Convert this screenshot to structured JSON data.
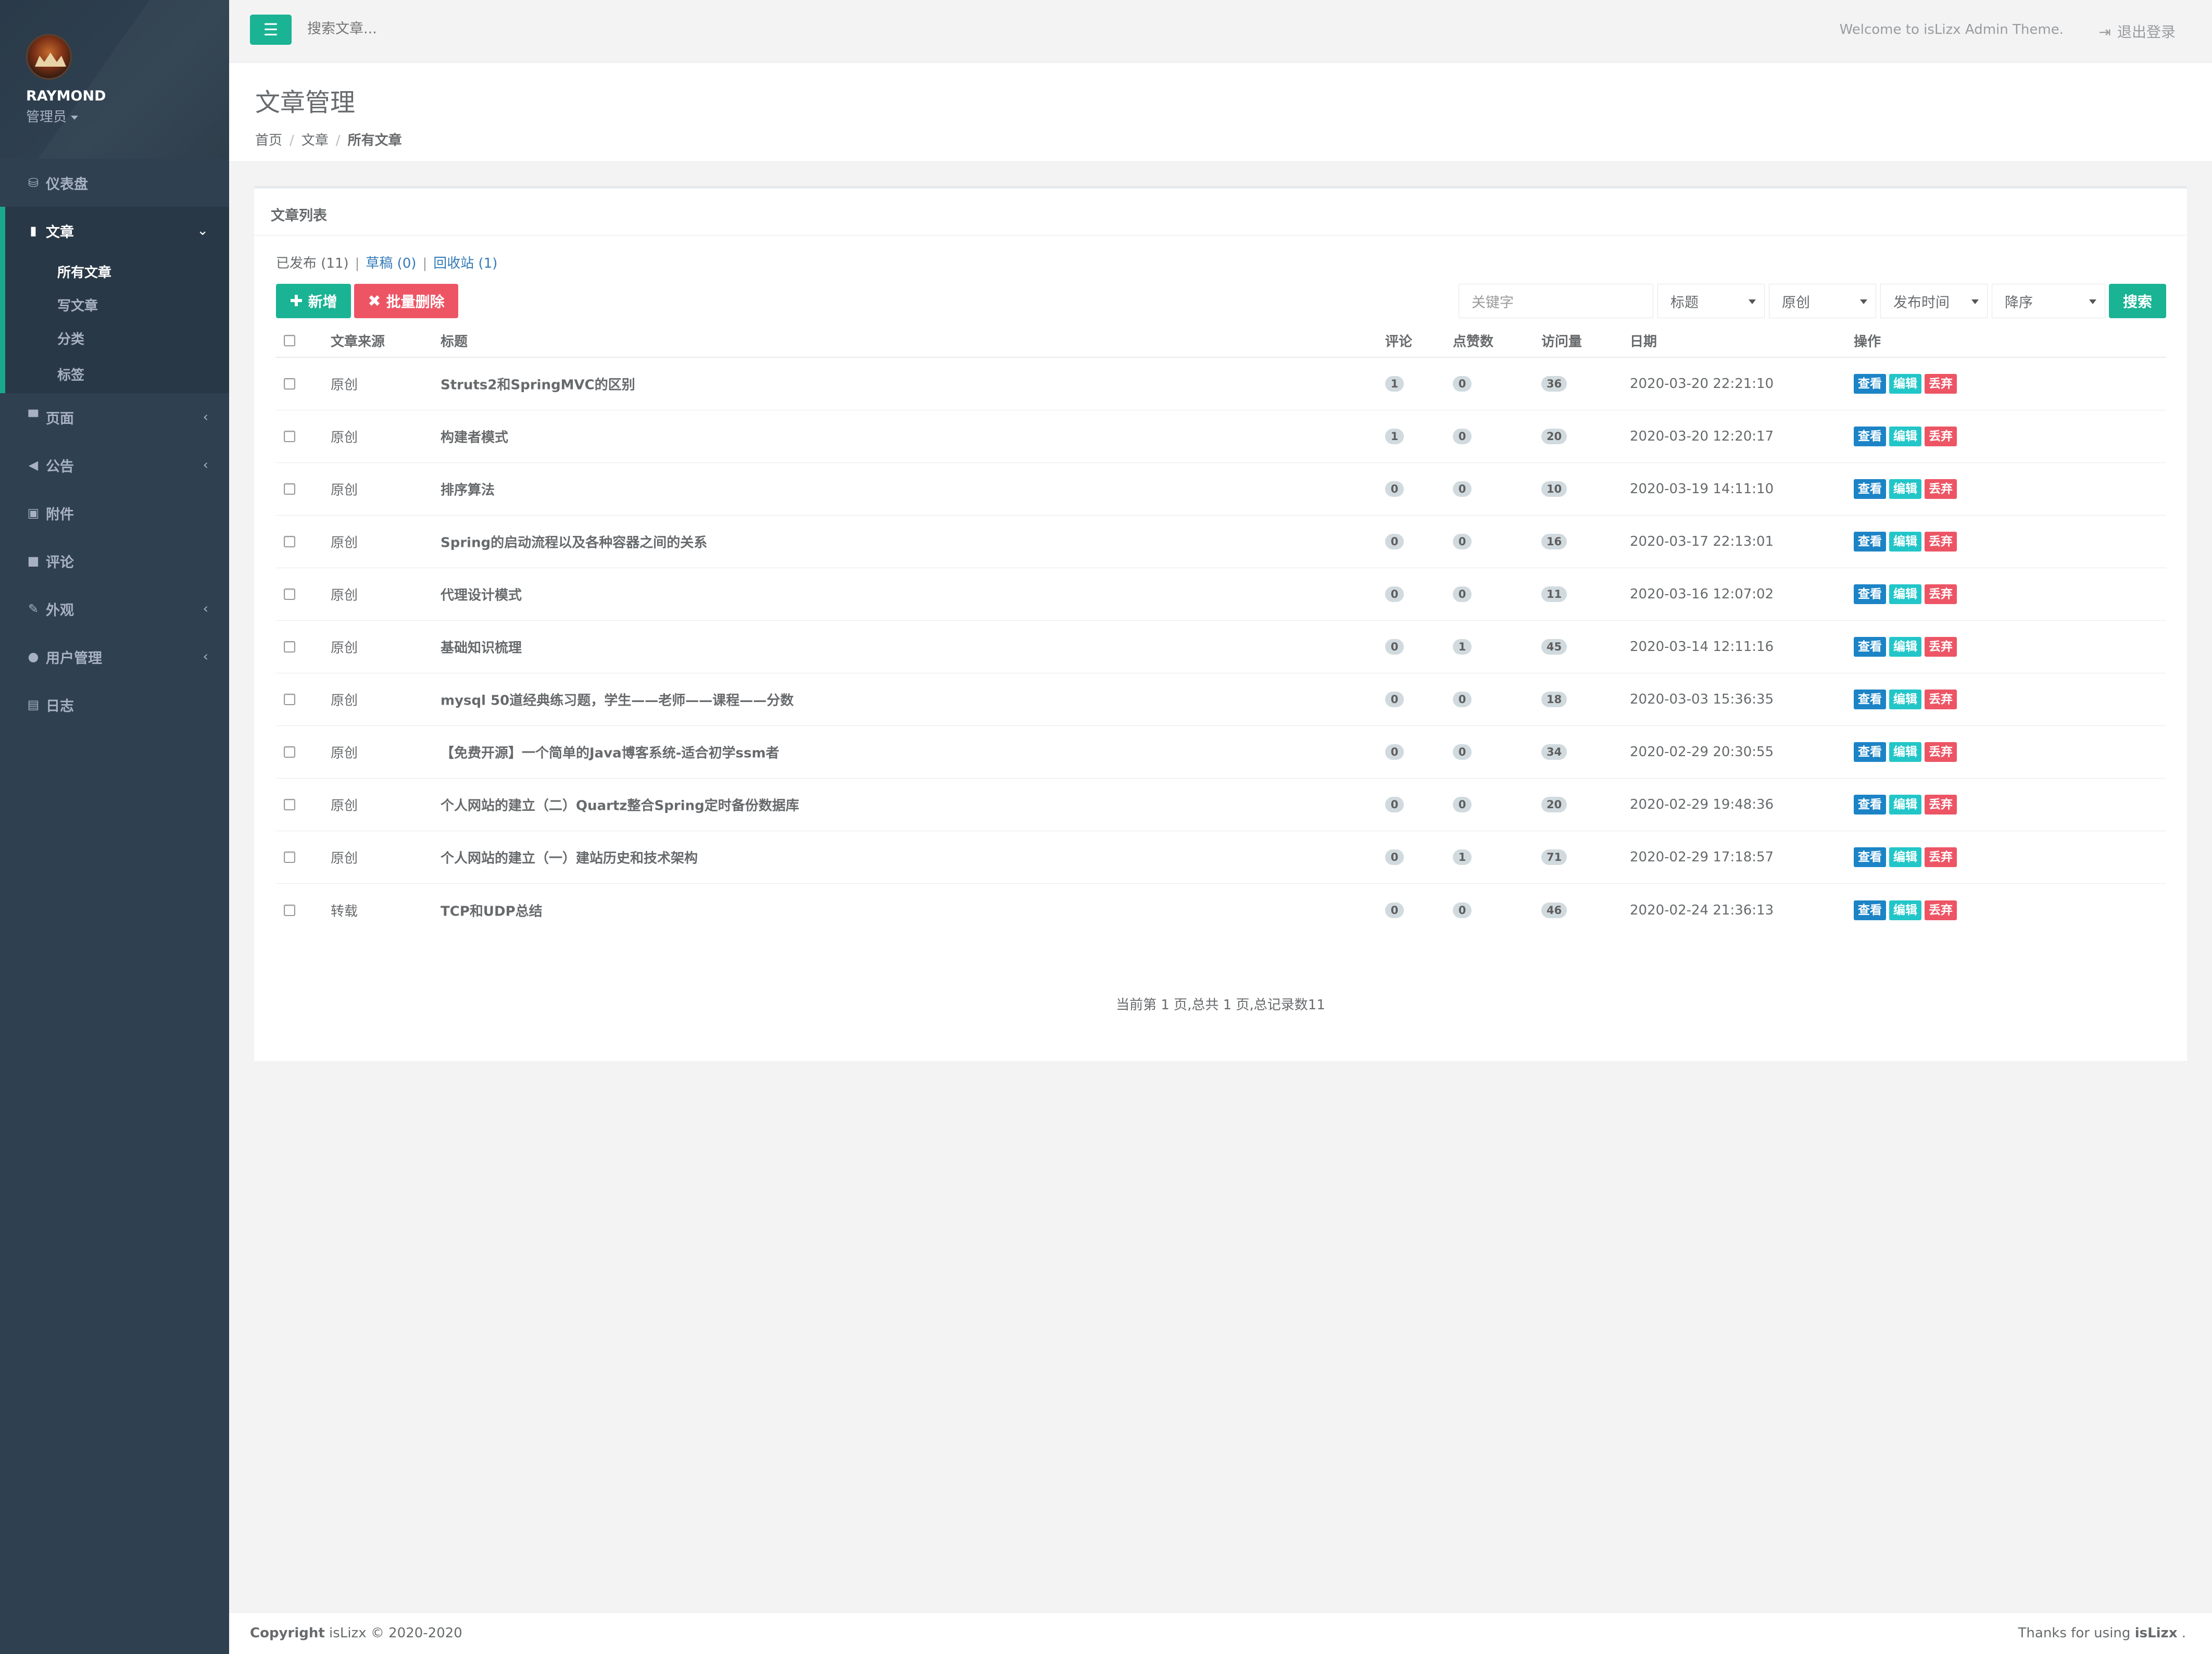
{
  "sidebar": {
    "profile": {
      "name": "RAYMOND",
      "role": "管理员"
    },
    "nav": [
      {
        "label": "仪表盘",
        "icon": "dashboard-icon",
        "glyph": "⛁"
      },
      {
        "label": "文章",
        "icon": "book-icon",
        "glyph": "▮",
        "chev": "⌄"
      },
      {
        "label": "页面",
        "icon": "desktop-icon",
        "glyph": "▀",
        "chev": "‹"
      },
      {
        "label": "公告",
        "icon": "bullhorn-icon",
        "glyph": "◀",
        "chev": "‹"
      },
      {
        "label": "附件",
        "icon": "picture-icon",
        "glyph": "▣"
      },
      {
        "label": "评论",
        "icon": "comment-icon",
        "glyph": "■"
      },
      {
        "label": "外观",
        "icon": "paint-brush-icon",
        "glyph": "✎",
        "chev": "‹"
      },
      {
        "label": "用户管理",
        "icon": "user-icon",
        "glyph": "●",
        "chev": "‹"
      },
      {
        "label": "日志",
        "icon": "save-icon",
        "glyph": "▤"
      }
    ],
    "sub": [
      "所有文章",
      "写文章",
      "分类",
      "标签"
    ]
  },
  "topbar": {
    "search_placeholder": "搜索文章...",
    "welcome": "Welcome to isLizx Admin Theme.",
    "logout": "退出登录",
    "menu_glyph": "☰",
    "logout_glyph": "⇥"
  },
  "heading": {
    "title": "文章管理",
    "breadcrumb": [
      "首页",
      "文章",
      "所有文章"
    ],
    "sep": "/"
  },
  "panel": {
    "title": "文章列表",
    "filters": {
      "published": "已发布 (11)",
      "draft": "草稿 (0)",
      "trash": "回收站 (1)",
      "bar": "|"
    },
    "add_label": "新增",
    "add_glyph": "✚",
    "batch_delete_label": "批量删除",
    "delete_glyph": "✖",
    "keyword_placeholder": "关键字",
    "field_select": "标题",
    "source_select": "原创",
    "sort_select": "发布时间",
    "order_select": "降序",
    "search_label": "搜索",
    "columns": {
      "source": "文章来源",
      "title": "标题",
      "comments": "评论",
      "likes": "点赞数",
      "views": "访问量",
      "date": "日期",
      "ops": "操作"
    },
    "op_labels": {
      "view": "查看",
      "edit": "编辑",
      "drop": "丢弃"
    },
    "rows": [
      {
        "source": "原创",
        "title": "Struts2和SpringMVC的区别",
        "comments": "1",
        "likes": "0",
        "views": "36",
        "date": "2020-03-20 22:21:10"
      },
      {
        "source": "原创",
        "title": "构建者模式",
        "comments": "1",
        "likes": "0",
        "views": "20",
        "date": "2020-03-20 12:20:17"
      },
      {
        "source": "原创",
        "title": "排序算法",
        "comments": "0",
        "likes": "0",
        "views": "10",
        "date": "2020-03-19 14:11:10"
      },
      {
        "source": "原创",
        "title": "Spring的启动流程以及各种容器之间的关系",
        "comments": "0",
        "likes": "0",
        "views": "16",
        "date": "2020-03-17 22:13:01"
      },
      {
        "source": "原创",
        "title": "代理设计模式",
        "comments": "0",
        "likes": "0",
        "views": "11",
        "date": "2020-03-16 12:07:02"
      },
      {
        "source": "原创",
        "title": "基础知识梳理",
        "comments": "0",
        "likes": "1",
        "views": "45",
        "date": "2020-03-14 12:11:16"
      },
      {
        "source": "原创",
        "title": "mysql 50道经典练习题，学生——老师——课程——分数",
        "comments": "0",
        "likes": "0",
        "views": "18",
        "date": "2020-03-03 15:36:35"
      },
      {
        "source": "原创",
        "title": "【免费开源】一个简单的Java博客系统-适合初学ssm者",
        "comments": "0",
        "likes": "0",
        "views": "34",
        "date": "2020-02-29 20:30:55"
      },
      {
        "source": "原创",
        "title": "个人网站的建立（二）Quartz整合Spring定时备份数据库",
        "comments": "0",
        "likes": "0",
        "views": "20",
        "date": "2020-02-29 19:48:36"
      },
      {
        "source": "原创",
        "title": "个人网站的建立（一）建站历史和技术架构",
        "comments": "0",
        "likes": "1",
        "views": "71",
        "date": "2020-02-29 17:18:57"
      },
      {
        "source": "转载",
        "title": "TCP和UDP总结",
        "comments": "0",
        "likes": "0",
        "views": "46",
        "date": "2020-02-24 21:36:13"
      }
    ],
    "page_info": "当前第 1 页,总共 1 页,总记录数11"
  },
  "footer": {
    "copyright_label": "Copyright",
    "copyright_text": " isLizx © 2020-2020",
    "thanks_text": "Thanks for using ",
    "thanks_brand": "isLizx",
    "thanks_end": " ."
  },
  "colors": {
    "sidebar": "#2f4050",
    "accent": "#1ab394",
    "danger": "#ed5565",
    "info": "#1c84c6",
    "cyan": "#23c6c8"
  }
}
